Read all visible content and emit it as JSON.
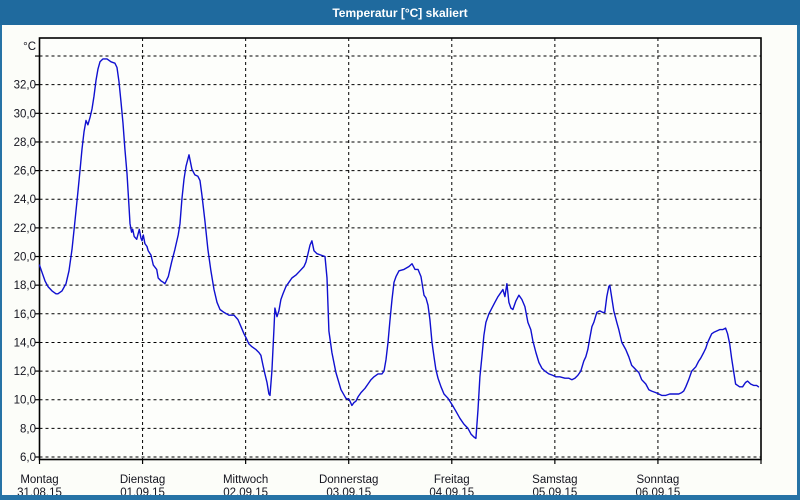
{
  "window": {
    "title": "Temperatur [°C] skaliert",
    "title_bar_color": "#1f6a9e",
    "border_color": "#2673a6",
    "background_color": "#fcfdf9",
    "text_color": "#14141e"
  },
  "chart_data": {
    "type": "line",
    "title": "Temperatur [°C] skaliert",
    "xlabel": "",
    "ylabel": "",
    "y_axis_unit": "°C",
    "grid": "dashed",
    "axis_color": "#000000",
    "plot_bg": "#fdfefb",
    "ylim": [
      5.8,
      35.3
    ],
    "xlim_days": [
      0,
      7
    ],
    "y_gridlines": [
      6,
      8,
      10,
      12,
      14,
      16,
      18,
      20,
      22,
      24,
      26,
      28,
      30,
      32,
      34
    ],
    "y_ticks": [
      32,
      30,
      28,
      26,
      24,
      22,
      20,
      18,
      16,
      14,
      12,
      10,
      8,
      6
    ],
    "y_tick_labels": [
      "32,0",
      "30,0",
      "28,0",
      "26,0",
      "24,0",
      "22,0",
      "20,0",
      "18,0",
      "16,0",
      "14,0",
      "12,0",
      "10,0",
      "8,0",
      "6,0"
    ],
    "x_axis": {
      "days": [
        {
          "weekday": "Montag",
          "date": "31.08.15"
        },
        {
          "weekday": "Dienstag",
          "date": "01.09.15"
        },
        {
          "weekday": "Mittwoch",
          "date": "02.09.15"
        },
        {
          "weekday": "Donnerstag",
          "date": "03.09.15"
        },
        {
          "weekday": "Freitag",
          "date": "04.09.15"
        },
        {
          "weekday": "Samstag",
          "date": "05.09.15"
        },
        {
          "weekday": "Sonntag",
          "date": "06.09.15"
        }
      ]
    },
    "series": [
      {
        "name": "Temperatur [°C]",
        "color": "#1010d0",
        "points": [
          [
            0,
            19.4
          ],
          [
            0.024,
            18.9
          ],
          [
            0.053,
            18.3
          ],
          [
            0.082,
            17.9
          ],
          [
            0.121,
            17.6
          ],
          [
            0.16,
            17.4
          ],
          [
            0.179,
            17.4
          ],
          [
            0.218,
            17.6
          ],
          [
            0.257,
            18.1
          ],
          [
            0.286,
            19
          ],
          [
            0.315,
            20.5
          ],
          [
            0.344,
            22.5
          ],
          [
            0.373,
            24.5
          ],
          [
            0.393,
            26
          ],
          [
            0.412,
            27.5
          ],
          [
            0.432,
            28.7
          ],
          [
            0.451,
            29.5
          ],
          [
            0.47,
            29.2
          ],
          [
            0.49,
            29.7
          ],
          [
            0.509,
            30.3
          ],
          [
            0.529,
            31.2
          ],
          [
            0.548,
            32.3
          ],
          [
            0.568,
            33.1
          ],
          [
            0.587,
            33.6
          ],
          [
            0.616,
            33.8
          ],
          [
            0.655,
            33.8
          ],
          [
            0.694,
            33.6
          ],
          [
            0.732,
            33.5
          ],
          [
            0.752,
            33.2
          ],
          [
            0.771,
            32.2
          ],
          [
            0.791,
            30.8
          ],
          [
            0.81,
            29.3
          ],
          [
            0.829,
            27.5
          ],
          [
            0.849,
            25.8
          ],
          [
            0.868,
            23.5
          ],
          [
            0.878,
            22.3
          ],
          [
            0.894,
            21.7
          ],
          [
            0.904,
            21.9
          ],
          [
            0.919,
            21.4
          ],
          [
            0.943,
            21.2
          ],
          [
            0.968,
            21.9
          ],
          [
            0.984,
            21.3
          ],
          [
            0.994,
            21.1
          ],
          [
            1.007,
            21.5
          ],
          [
            1.023,
            20.9
          ],
          [
            1.043,
            20.7
          ],
          [
            1.055,
            20.4
          ],
          [
            1.082,
            20.1
          ],
          [
            1.104,
            19.4
          ],
          [
            1.137,
            19.1
          ],
          [
            1.152,
            18.5
          ],
          [
            1.179,
            18.3
          ],
          [
            1.201,
            18.2
          ],
          [
            1.217,
            18.1
          ],
          [
            1.25,
            18.6
          ],
          [
            1.282,
            19.6
          ],
          [
            1.314,
            20.5
          ],
          [
            1.346,
            21.5
          ],
          [
            1.363,
            22.3
          ],
          [
            1.382,
            24
          ],
          [
            1.402,
            25.4
          ],
          [
            1.421,
            26.3
          ],
          [
            1.45,
            27.1
          ],
          [
            1.479,
            26.1
          ],
          [
            1.508,
            25.7
          ],
          [
            1.537,
            25.6
          ],
          [
            1.557,
            25.3
          ],
          [
            1.576,
            24.3
          ],
          [
            1.605,
            22.5
          ],
          [
            1.634,
            20.5
          ],
          [
            1.663,
            19
          ],
          [
            1.693,
            17.7
          ],
          [
            1.722,
            16.8
          ],
          [
            1.751,
            16.3
          ],
          [
            1.79,
            16.1
          ],
          [
            1.838,
            15.9
          ],
          [
            1.887,
            15.9
          ],
          [
            1.925,
            15.6
          ],
          [
            1.955,
            15.1
          ],
          [
            1.984,
            14.6
          ],
          [
            2.005,
            14.3
          ],
          [
            2.032,
            13.9
          ],
          [
            2.061,
            13.7
          ],
          [
            2.1,
            13.5
          ],
          [
            2.129,
            13.3
          ],
          [
            2.148,
            13.1
          ],
          [
            2.168,
            12.4
          ],
          [
            2.187,
            11.8
          ],
          [
            2.207,
            11.2
          ],
          [
            2.226,
            10.4
          ],
          [
            2.236,
            10.3
          ],
          [
            2.255,
            12
          ],
          [
            2.275,
            15
          ],
          [
            2.284,
            16.4
          ],
          [
            2.304,
            15.8
          ],
          [
            2.323,
            16.2
          ],
          [
            2.342,
            17
          ],
          [
            2.362,
            17.4
          ],
          [
            2.391,
            17.9
          ],
          [
            2.42,
            18.2
          ],
          [
            2.449,
            18.5
          ],
          [
            2.488,
            18.7
          ],
          [
            2.527,
            19
          ],
          [
            2.566,
            19.3
          ],
          [
            2.585,
            19.6
          ],
          [
            2.605,
            20.2
          ],
          [
            2.624,
            20.8
          ],
          [
            2.643,
            21.1
          ],
          [
            2.663,
            20.4
          ],
          [
            2.692,
            20.2
          ],
          [
            2.731,
            20.1
          ],
          [
            2.77,
            20
          ],
          [
            2.789,
            18.5
          ],
          [
            2.808,
            14.8
          ],
          [
            2.837,
            13.3
          ],
          [
            2.876,
            11.9
          ],
          [
            2.925,
            10.7
          ],
          [
            2.973,
            10.1
          ],
          [
            3.006,
            10
          ],
          [
            3.031,
            9.6
          ],
          [
            3.051,
            9.8
          ],
          [
            3.07,
            9.9
          ],
          [
            3.09,
            10.2
          ],
          [
            3.119,
            10.5
          ],
          [
            3.158,
            10.8
          ],
          [
            3.187,
            11.1
          ],
          [
            3.216,
            11.4
          ],
          [
            3.245,
            11.6
          ],
          [
            3.284,
            11.8
          ],
          [
            3.323,
            11.8
          ],
          [
            3.342,
            12
          ],
          [
            3.362,
            12.8
          ],
          [
            3.381,
            14
          ],
          [
            3.4,
            15.5
          ],
          [
            3.42,
            17
          ],
          [
            3.439,
            18.2
          ],
          [
            3.459,
            18.6
          ],
          [
            3.488,
            19
          ],
          [
            3.536,
            19.1
          ],
          [
            3.585,
            19.3
          ],
          [
            3.614,
            19.5
          ],
          [
            3.643,
            19.1
          ],
          [
            3.672,
            19.1
          ],
          [
            3.701,
            18.6
          ],
          [
            3.73,
            17.3
          ],
          [
            3.75,
            17.1
          ],
          [
            3.769,
            16.6
          ],
          [
            3.788,
            15.6
          ],
          [
            3.808,
            14
          ],
          [
            3.827,
            13
          ],
          [
            3.846,
            12.1
          ],
          [
            3.866,
            11.5
          ],
          [
            3.895,
            10.9
          ],
          [
            3.924,
            10.4
          ],
          [
            3.963,
            10.1
          ],
          [
            4.007,
            9.6
          ],
          [
            4.04,
            9.2
          ],
          [
            4.079,
            8.7
          ],
          [
            4.118,
            8.3
          ],
          [
            4.157,
            8
          ],
          [
            4.186,
            7.6
          ],
          [
            4.215,
            7.4
          ],
          [
            4.234,
            7.3
          ],
          [
            4.254,
            9.3
          ],
          [
            4.273,
            11.6
          ],
          [
            4.292,
            13
          ],
          [
            4.312,
            14.5
          ],
          [
            4.331,
            15.4
          ],
          [
            4.36,
            16
          ],
          [
            4.389,
            16.4
          ],
          [
            4.418,
            16.8
          ],
          [
            4.448,
            17.2
          ],
          [
            4.477,
            17.5
          ],
          [
            4.496,
            17.7
          ],
          [
            4.515,
            17.2
          ],
          [
            4.535,
            18.1
          ],
          [
            4.554,
            16.8
          ],
          [
            4.574,
            16.4
          ],
          [
            4.593,
            16.3
          ],
          [
            4.622,
            16.9
          ],
          [
            4.651,
            17.3
          ],
          [
            4.68,
            17
          ],
          [
            4.709,
            16.5
          ],
          [
            4.738,
            15.4
          ],
          [
            4.767,
            14.9
          ],
          [
            4.787,
            14.1
          ],
          [
            4.816,
            13.3
          ],
          [
            4.845,
            12.6
          ],
          [
            4.874,
            12.2
          ],
          [
            4.903,
            12
          ],
          [
            4.942,
            11.8
          ],
          [
            4.981,
            11.7
          ],
          [
            5.008,
            11.6
          ],
          [
            5.048,
            11.6
          ],
          [
            5.097,
            11.5
          ],
          [
            5.136,
            11.5
          ],
          [
            5.165,
            11.4
          ],
          [
            5.194,
            11.5
          ],
          [
            5.223,
            11.7
          ],
          [
            5.252,
            12
          ],
          [
            5.281,
            12.7
          ],
          [
            5.3,
            13
          ],
          [
            5.32,
            13.5
          ],
          [
            5.339,
            14.3
          ],
          [
            5.359,
            15.1
          ],
          [
            5.378,
            15.4
          ],
          [
            5.407,
            16.1
          ],
          [
            5.436,
            16.2
          ],
          [
            5.465,
            16.1
          ],
          [
            5.485,
            16.1
          ],
          [
            5.504,
            17.2
          ],
          [
            5.523,
            17.9
          ],
          [
            5.533,
            18
          ],
          [
            5.552,
            17.1
          ],
          [
            5.572,
            16.2
          ],
          [
            5.601,
            15.4
          ],
          [
            5.62,
            14.9
          ],
          [
            5.649,
            14
          ],
          [
            5.688,
            13.5
          ],
          [
            5.717,
            13
          ],
          [
            5.746,
            12.4
          ],
          [
            5.785,
            12.1
          ],
          [
            5.814,
            11.9
          ],
          [
            5.843,
            11.4
          ],
          [
            5.882,
            11.1
          ],
          [
            5.911,
            10.7
          ],
          [
            5.94,
            10.6
          ],
          [
            5.979,
            10.5
          ],
          [
            6.008,
            10.4
          ],
          [
            6.037,
            10.3
          ],
          [
            6.076,
            10.3
          ],
          [
            6.115,
            10.4
          ],
          [
            6.163,
            10.4
          ],
          [
            6.202,
            10.4
          ],
          [
            6.231,
            10.5
          ],
          [
            6.25,
            10.6
          ],
          [
            6.27,
            10.9
          ],
          [
            6.299,
            11.4
          ],
          [
            6.328,
            12
          ],
          [
            6.367,
            12.3
          ],
          [
            6.396,
            12.7
          ],
          [
            6.415,
            12.9
          ],
          [
            6.444,
            13.3
          ],
          [
            6.464,
            13.6
          ],
          [
            6.483,
            14
          ],
          [
            6.502,
            14.3
          ],
          [
            6.522,
            14.6
          ],
          [
            6.541,
            14.7
          ],
          [
            6.57,
            14.8
          ],
          [
            6.599,
            14.9
          ],
          [
            6.628,
            14.9
          ],
          [
            6.657,
            15
          ],
          [
            6.676,
            14.6
          ],
          [
            6.696,
            13.9
          ],
          [
            6.715,
            12.9
          ],
          [
            6.734,
            12
          ],
          [
            6.754,
            11.1
          ],
          [
            6.773,
            11
          ],
          [
            6.792,
            10.9
          ],
          [
            6.821,
            10.9
          ],
          [
            6.85,
            11.2
          ],
          [
            6.87,
            11.3
          ],
          [
            6.899,
            11.1
          ],
          [
            6.928,
            11
          ],
          [
            6.957,
            11
          ],
          [
            6.976,
            10.9
          ]
        ]
      }
    ]
  }
}
